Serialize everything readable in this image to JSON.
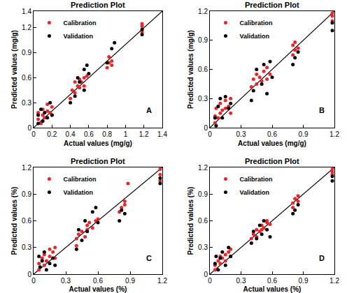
{
  "chart_data": [
    {
      "type": "scatter",
      "title": "Prediction Plot",
      "x_label": "Actual values (mg/g)",
      "y_label": "Predicted values (mg/g)",
      "annotations": [
        "A"
      ],
      "legend": "upper left",
      "marker": "circle",
      "xlim": [
        0,
        1.4
      ],
      "xticks": [
        0,
        0.2,
        0.4,
        0.6,
        0.8,
        1,
        1.2,
        1.4
      ],
      "ylim": [
        0,
        1.4
      ],
      "yticks": [
        0,
        0.3,
        0.6,
        0.9,
        1.2,
        1.4
      ],
      "identity_line": {
        "x": [
          0,
          1.4
        ],
        "y": [
          0,
          1.4
        ]
      },
      "series": [
        {
          "name": "Calibration",
          "color": "#e8262b",
          "x": [
            0.05,
            0.05,
            0.08,
            0.1,
            0.1,
            0.12,
            0.15,
            0.15,
            0.18,
            0.2,
            0.2,
            0.4,
            0.42,
            0.45,
            0.45,
            0.48,
            0.5,
            0.5,
            0.52,
            0.55,
            0.55,
            0.58,
            0.8,
            0.82,
            0.82,
            0.85,
            0.85,
            1.18,
            1.18,
            1.18
          ],
          "values": [
            0.1,
            0.18,
            0.05,
            0.15,
            0.22,
            0.12,
            0.2,
            0.28,
            0.18,
            0.25,
            0.15,
            0.35,
            0.45,
            0.42,
            0.55,
            0.5,
            0.48,
            0.58,
            0.55,
            0.6,
            0.5,
            0.62,
            0.72,
            0.78,
            0.85,
            0.8,
            0.75,
            1.15,
            1.22,
            1.25
          ]
        },
        {
          "name": "Validation",
          "color": "#000000",
          "x": [
            0.05,
            0.05,
            0.08,
            0.1,
            0.12,
            0.15,
            0.18,
            0.2,
            0.4,
            0.45,
            0.48,
            0.5,
            0.55,
            0.55,
            0.58,
            0.6,
            0.8,
            0.85,
            0.88,
            1.18,
            1.18
          ],
          "values": [
            0.15,
            0.05,
            0.22,
            0.08,
            0.18,
            0.12,
            0.3,
            0.15,
            0.3,
            0.38,
            0.6,
            0.55,
            0.7,
            0.45,
            0.75,
            0.65,
            0.78,
            0.95,
            1.02,
            1.12,
            1.18
          ]
        }
      ]
    },
    {
      "type": "scatter",
      "title": "Prediction Plot",
      "x_label": "Actual values (mg/g)",
      "y_label": "Predicted values (mg/g)",
      "annotations": [
        "B"
      ],
      "legend": "upper left",
      "marker": "circle",
      "xlim": [
        0,
        1.2
      ],
      "xticks": [
        0,
        0.3,
        0.6,
        0.9,
        1.2
      ],
      "ylim": [
        0,
        1.2
      ],
      "yticks": [
        0,
        0.3,
        0.6,
        0.9,
        1.2
      ],
      "identity_line": {
        "x": [
          0,
          1.2
        ],
        "y": [
          0,
          1.2
        ]
      },
      "series": [
        {
          "name": "Calibration",
          "color": "#e8262b",
          "x": [
            0.05,
            0.05,
            0.06,
            0.08,
            0.1,
            0.1,
            0.12,
            0.15,
            0.15,
            0.18,
            0.2,
            0.2,
            0.4,
            0.42,
            0.45,
            0.45,
            0.48,
            0.5,
            0.52,
            0.55,
            0.55,
            0.58,
            0.8,
            0.8,
            0.82,
            0.82,
            0.85,
            1.18,
            1.18,
            1.18
          ],
          "values": [
            0.05,
            0.12,
            0.2,
            0.1,
            0.15,
            0.25,
            0.18,
            0.2,
            0.28,
            0.22,
            0.15,
            0.3,
            0.42,
            0.5,
            0.45,
            0.55,
            0.52,
            0.48,
            0.58,
            0.5,
            0.62,
            0.55,
            0.75,
            0.85,
            0.8,
            0.88,
            0.82,
            1.1,
            1.15,
            1.18
          ]
        },
        {
          "name": "Validation",
          "color": "#000000",
          "x": [
            0.05,
            0.06,
            0.08,
            0.1,
            0.12,
            0.15,
            0.18,
            0.2,
            0.4,
            0.42,
            0.45,
            0.5,
            0.52,
            0.55,
            0.58,
            0.6,
            0.8,
            0.82,
            0.85,
            1.18,
            1.18
          ],
          "values": [
            0.1,
            0.02,
            0.22,
            0.3,
            0.1,
            0.32,
            0.2,
            0.25,
            0.28,
            0.38,
            0.6,
            0.45,
            0.65,
            0.35,
            0.68,
            0.52,
            0.65,
            0.72,
            0.78,
            1.0,
            1.08
          ]
        }
      ]
    },
    {
      "type": "scatter",
      "title": "Prediction Plot",
      "x_label": "Actual values (%)",
      "y_label": "Predicted values (%)",
      "annotations": [
        "C"
      ],
      "legend": "upper left",
      "marker": "circle",
      "xlim": [
        0,
        1.2
      ],
      "xticks": [
        0,
        0.3,
        0.6,
        0.9,
        1.2
      ],
      "ylim": [
        0,
        1.2
      ],
      "yticks": [
        0,
        0.3,
        0.6,
        0.9,
        1.2
      ],
      "identity_line": {
        "x": [
          0,
          1.2
        ],
        "y": [
          0,
          1.2
        ]
      },
      "series": [
        {
          "name": "Calibration",
          "color": "#e8262b",
          "x": [
            0.05,
            0.05,
            0.08,
            0.1,
            0.1,
            0.12,
            0.15,
            0.15,
            0.18,
            0.2,
            0.2,
            0.4,
            0.4,
            0.42,
            0.45,
            0.48,
            0.5,
            0.5,
            0.52,
            0.55,
            0.58,
            0.6,
            0.8,
            0.82,
            0.85,
            0.85,
            0.88,
            1.18,
            1.18,
            1.18
          ],
          "values": [
            0.05,
            0.12,
            0.18,
            0.1,
            0.22,
            0.15,
            0.2,
            0.28,
            0.25,
            0.18,
            0.3,
            0.32,
            0.4,
            0.45,
            0.48,
            0.42,
            0.5,
            0.55,
            0.58,
            0.52,
            0.6,
            0.62,
            0.7,
            0.75,
            0.78,
            0.82,
            1.02,
            1.05,
            1.12,
            1.18
          ]
        },
        {
          "name": "Validation",
          "color": "#000000",
          "x": [
            0.05,
            0.06,
            0.08,
            0.1,
            0.12,
            0.15,
            0.18,
            0.2,
            0.4,
            0.42,
            0.45,
            0.48,
            0.5,
            0.55,
            0.58,
            0.6,
            0.8,
            0.82,
            0.85,
            1.18,
            1.18
          ],
          "values": [
            0.2,
            0.08,
            0.15,
            0.25,
            0.05,
            0.12,
            0.18,
            0.1,
            0.28,
            0.5,
            0.38,
            0.6,
            0.48,
            0.7,
            0.75,
            0.58,
            0.6,
            0.72,
            0.68,
            1.02,
            1.08
          ]
        }
      ]
    },
    {
      "type": "scatter",
      "title": "Prediction Plot",
      "x_label": "Actual values (%)",
      "y_label": "Predicted values (%)",
      "annotations": [
        "D"
      ],
      "legend": "upper left",
      "marker": "circle",
      "xlim": [
        0,
        1.2
      ],
      "xticks": [
        0,
        0.3,
        0.6,
        0.9,
        1.2
      ],
      "ylim": [
        0,
        1.2
      ],
      "yticks": [
        0,
        0.3,
        0.6,
        0.9,
        1.2
      ],
      "identity_line": {
        "x": [
          0,
          1.2
        ],
        "y": [
          0,
          1.2
        ]
      },
      "series": [
        {
          "name": "Calibration",
          "color": "#e8262b",
          "x": [
            0.05,
            0.05,
            0.08,
            0.1,
            0.1,
            0.12,
            0.15,
            0.15,
            0.18,
            0.2,
            0.2,
            0.4,
            0.42,
            0.45,
            0.45,
            0.48,
            0.5,
            0.5,
            0.52,
            0.55,
            0.55,
            0.58,
            0.8,
            0.8,
            0.82,
            0.85,
            0.85,
            1.18,
            1.18,
            1.18
          ],
          "values": [
            0.05,
            0.1,
            0.15,
            0.12,
            0.2,
            0.18,
            0.22,
            0.15,
            0.25,
            0.2,
            0.28,
            0.4,
            0.45,
            0.42,
            0.5,
            0.48,
            0.5,
            0.55,
            0.52,
            0.58,
            0.6,
            0.56,
            0.75,
            0.8,
            0.85,
            0.82,
            0.88,
            1.12,
            1.15,
            1.18
          ]
        },
        {
          "name": "Validation",
          "color": "#000000",
          "x": [
            0.05,
            0.06,
            0.08,
            0.1,
            0.12,
            0.15,
            0.18,
            0.2,
            0.4,
            0.42,
            0.45,
            0.48,
            0.5,
            0.52,
            0.55,
            0.58,
            0.8,
            0.82,
            0.85,
            1.18,
            1.18
          ],
          "values": [
            0.12,
            0.2,
            0.05,
            0.18,
            0.25,
            0.1,
            0.3,
            0.2,
            0.35,
            0.48,
            0.4,
            0.55,
            0.45,
            0.6,
            0.5,
            0.42,
            0.68,
            0.72,
            0.78,
            1.05,
            1.1
          ]
        }
      ]
    }
  ]
}
